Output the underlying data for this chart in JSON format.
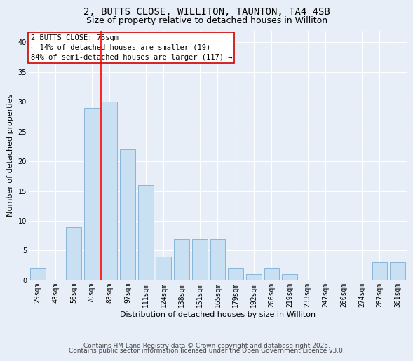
{
  "title_line1": "2, BUTTS CLOSE, WILLITON, TAUNTON, TA4 4SB",
  "title_line2": "Size of property relative to detached houses in Williton",
  "xlabel": "Distribution of detached houses by size in Williton",
  "ylabel": "Number of detached properties",
  "categories": [
    "29sqm",
    "43sqm",
    "56sqm",
    "70sqm",
    "83sqm",
    "97sqm",
    "111sqm",
    "124sqm",
    "138sqm",
    "151sqm",
    "165sqm",
    "179sqm",
    "192sqm",
    "206sqm",
    "219sqm",
    "233sqm",
    "247sqm",
    "260sqm",
    "274sqm",
    "287sqm",
    "301sqm"
  ],
  "values": [
    2,
    0,
    9,
    29,
    30,
    22,
    16,
    4,
    7,
    7,
    7,
    2,
    1,
    2,
    1,
    0,
    0,
    0,
    0,
    3,
    3
  ],
  "bar_color": "#c9dff2",
  "bar_edge_color": "#7aafd4",
  "red_line_index": 3,
  "annotation_title": "2 BUTTS CLOSE: 75sqm",
  "annotation_line1": "← 14% of detached houses are smaller (19)",
  "annotation_line2": "84% of semi-detached houses are larger (117) →",
  "annotation_box_facecolor": "#ffffff",
  "annotation_box_edgecolor": "#cc0000",
  "ylim_max": 42,
  "yticks": [
    0,
    5,
    10,
    15,
    20,
    25,
    30,
    35,
    40
  ],
  "footer_line1": "Contains HM Land Registry data © Crown copyright and database right 2025.",
  "footer_line2": "Contains public sector information licensed under the Open Government Licence v3.0.",
  "background_color": "#e8eef7",
  "grid_color": "#ffffff",
  "title_fontsize": 10,
  "subtitle_fontsize": 9,
  "axis_label_fontsize": 8,
  "tick_fontsize": 7,
  "annotation_fontsize": 7.5,
  "footer_fontsize": 6.5
}
